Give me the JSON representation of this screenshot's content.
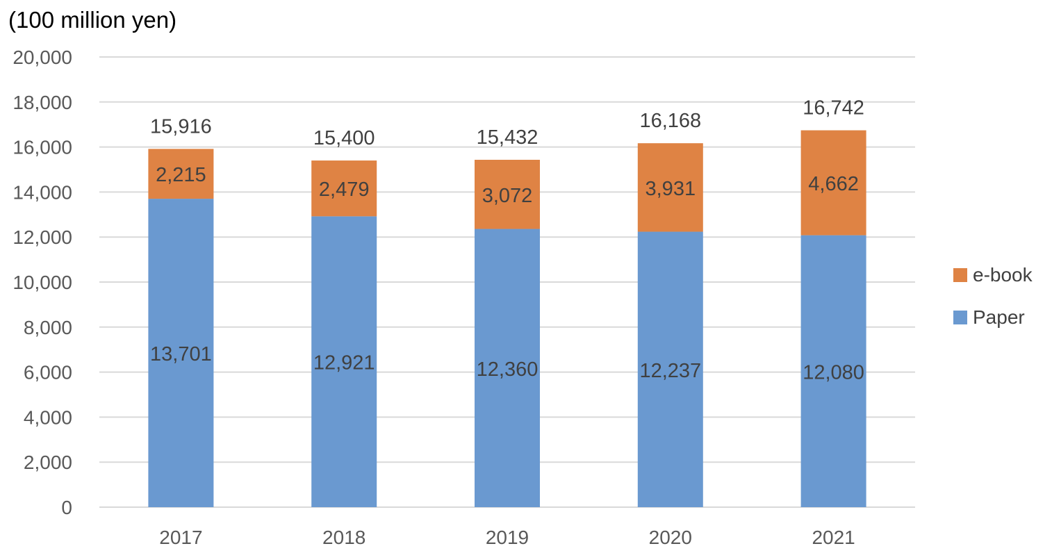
{
  "chart_data": {
    "type": "bar",
    "stacked": true,
    "unit_label": "(100 million yen)",
    "title": "",
    "xlabel": "",
    "ylabel": "",
    "categories": [
      "2017",
      "2018",
      "2019",
      "2020",
      "2021"
    ],
    "ylim": [
      0,
      20000
    ],
    "yticks": [
      0,
      2000,
      4000,
      6000,
      8000,
      10000,
      12000,
      14000,
      16000,
      18000,
      20000
    ],
    "ytick_labels": [
      "0",
      "2,000",
      "4,000",
      "6,000",
      "8,000",
      "10,000",
      "12,000",
      "14,000",
      "16,000",
      "18,000",
      "20,000"
    ],
    "grid": true,
    "legend_position": "right",
    "series": [
      {
        "name": "Paper",
        "color": "#6A99D0",
        "values": [
          13701,
          12921,
          12360,
          12237,
          12080
        ],
        "labels": [
          "13,701",
          "12,921",
          "12,360",
          "12,237",
          "12,080"
        ]
      },
      {
        "name": "e-book",
        "color": "#DF8344",
        "values": [
          2215,
          2479,
          3072,
          3931,
          4662
        ],
        "labels": [
          "2,215",
          "2,479",
          "3,072",
          "3,931",
          "4,662"
        ]
      }
    ],
    "totals": [
      15916,
      15400,
      15432,
      16168,
      16742
    ],
    "total_labels": [
      "15,916",
      "15,400",
      "15,432",
      "16,168",
      "16,742"
    ]
  },
  "legend": {
    "items": [
      {
        "name": "e-book",
        "color": "#DF8344"
      },
      {
        "name": "Paper",
        "color": "#6A99D0"
      }
    ]
  }
}
